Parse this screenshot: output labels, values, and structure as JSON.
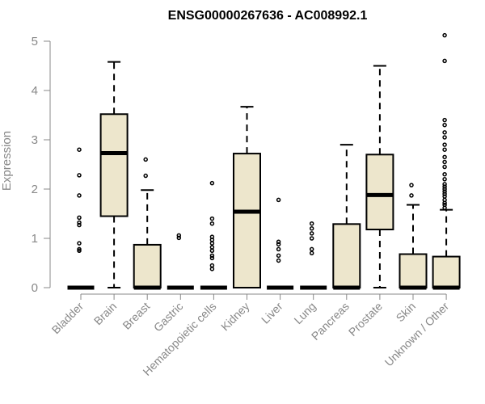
{
  "chart_data": {
    "type": "boxplot",
    "title": "ENSG00000267636 - AC008992.1",
    "ylabel": "Expression",
    "xlabel": "",
    "ylim": [
      0,
      5.2
    ],
    "yticks": [
      0,
      1,
      2,
      3,
      4,
      5
    ],
    "grid": false,
    "colors": {
      "box_fill": "#ede6cc",
      "stroke": "#000000",
      "axis_text": "#888888"
    },
    "categories": [
      "Bladder",
      "Brain",
      "Breast",
      "Gastric",
      "Hematopoietic cells",
      "Kidney",
      "Liver",
      "Lung",
      "Pancreas",
      "Prostate",
      "Skin",
      "Unknown / Other"
    ],
    "boxes": [
      {
        "q1": 0,
        "median": 0,
        "q3": 0,
        "lower": 0,
        "upper": 0,
        "outliers": [
          0.75,
          0.78,
          0.9,
          1.27,
          1.32,
          1.42,
          1.87,
          2.28,
          2.8
        ]
      },
      {
        "q1": 1.45,
        "median": 2.73,
        "q3": 3.52,
        "lower": 0,
        "upper": 4.58,
        "outliers": []
      },
      {
        "q1": 0,
        "median": 0,
        "q3": 0.87,
        "lower": 0,
        "upper": 1.98,
        "outliers": [
          2.27,
          2.6
        ]
      },
      {
        "q1": 0,
        "median": 0,
        "q3": 0,
        "lower": 0,
        "upper": 0,
        "outliers": [
          1.01,
          1.06
        ]
      },
      {
        "q1": 0,
        "median": 0,
        "q3": 0,
        "lower": 0,
        "upper": 0,
        "outliers": [
          0.38,
          0.45,
          0.6,
          0.65,
          0.75,
          0.82,
          0.9,
          0.97,
          1.03,
          1.3,
          1.4,
          2.12
        ]
      },
      {
        "q1": 0,
        "median": 1.54,
        "q3": 2.72,
        "lower": 0,
        "upper": 3.67,
        "outliers": []
      },
      {
        "q1": 0,
        "median": 0,
        "q3": 0,
        "lower": 0,
        "upper": 0,
        "outliers": [
          0.55,
          0.65,
          0.78,
          0.88,
          0.93,
          1.78
        ]
      },
      {
        "q1": 0,
        "median": 0,
        "q3": 0,
        "lower": 0,
        "upper": 0,
        "outliers": [
          0.7,
          0.78,
          1.0,
          1.1,
          1.2,
          1.3
        ]
      },
      {
        "q1": 0,
        "median": 0,
        "q3": 1.29,
        "lower": 0,
        "upper": 2.9,
        "outliers": []
      },
      {
        "q1": 1.18,
        "median": 1.88,
        "q3": 2.7,
        "lower": 0,
        "upper": 4.5,
        "outliers": []
      },
      {
        "q1": 0,
        "median": 0,
        "q3": 0.68,
        "lower": 0,
        "upper": 1.68,
        "outliers": [
          1.87,
          2.08
        ]
      },
      {
        "q1": 0,
        "median": 0,
        "q3": 0.63,
        "lower": 0,
        "upper": 1.58,
        "outliers": [
          1.62,
          1.68,
          1.72,
          1.78,
          1.85,
          1.9,
          1.95,
          2.0,
          2.05,
          2.1,
          2.2,
          2.3,
          2.45,
          2.55,
          2.65,
          2.8,
          2.9,
          3.05,
          3.15,
          3.3,
          3.4,
          4.6,
          5.12
        ]
      }
    ]
  }
}
